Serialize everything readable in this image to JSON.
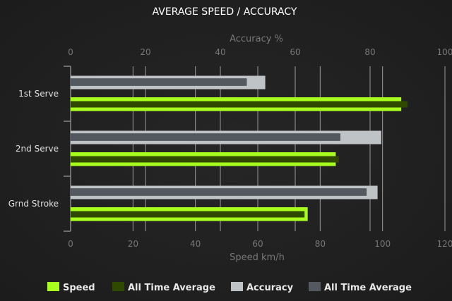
{
  "chart_data": {
    "type": "bar",
    "orientation": "horizontal",
    "title": "AVERAGE SPEED / ACCURACY",
    "categories": [
      "1st Serve",
      "2nd Serve",
      "Grnd Stroke"
    ],
    "x_top": {
      "label": "Accuracy %",
      "range": [
        0,
        100
      ],
      "ticks": [
        0,
        20,
        40,
        60,
        80,
        100
      ]
    },
    "x_bottom": {
      "label": "Speed km/h",
      "range": [
        0,
        120
      ],
      "ticks": [
        0,
        20,
        40,
        60,
        80,
        100,
        120
      ]
    },
    "grid": true,
    "legend_position": "bottom",
    "series": [
      {
        "name": "Speed",
        "axis": "speed",
        "color": "#a8ff1e",
        "values": [
          106,
          85,
          76
        ]
      },
      {
        "name": "All Time Average",
        "axis": "speed",
        "color": "#2f4a00",
        "values": [
          108,
          86,
          75
        ]
      },
      {
        "name": "Accuracy",
        "axis": "accuracy",
        "color": "#bfc3c6",
        "values": [
          52,
          83,
          82
        ]
      },
      {
        "name": "All Time Average",
        "axis": "accuracy",
        "color": "#545960",
        "values": [
          47,
          72,
          79
        ]
      }
    ]
  }
}
